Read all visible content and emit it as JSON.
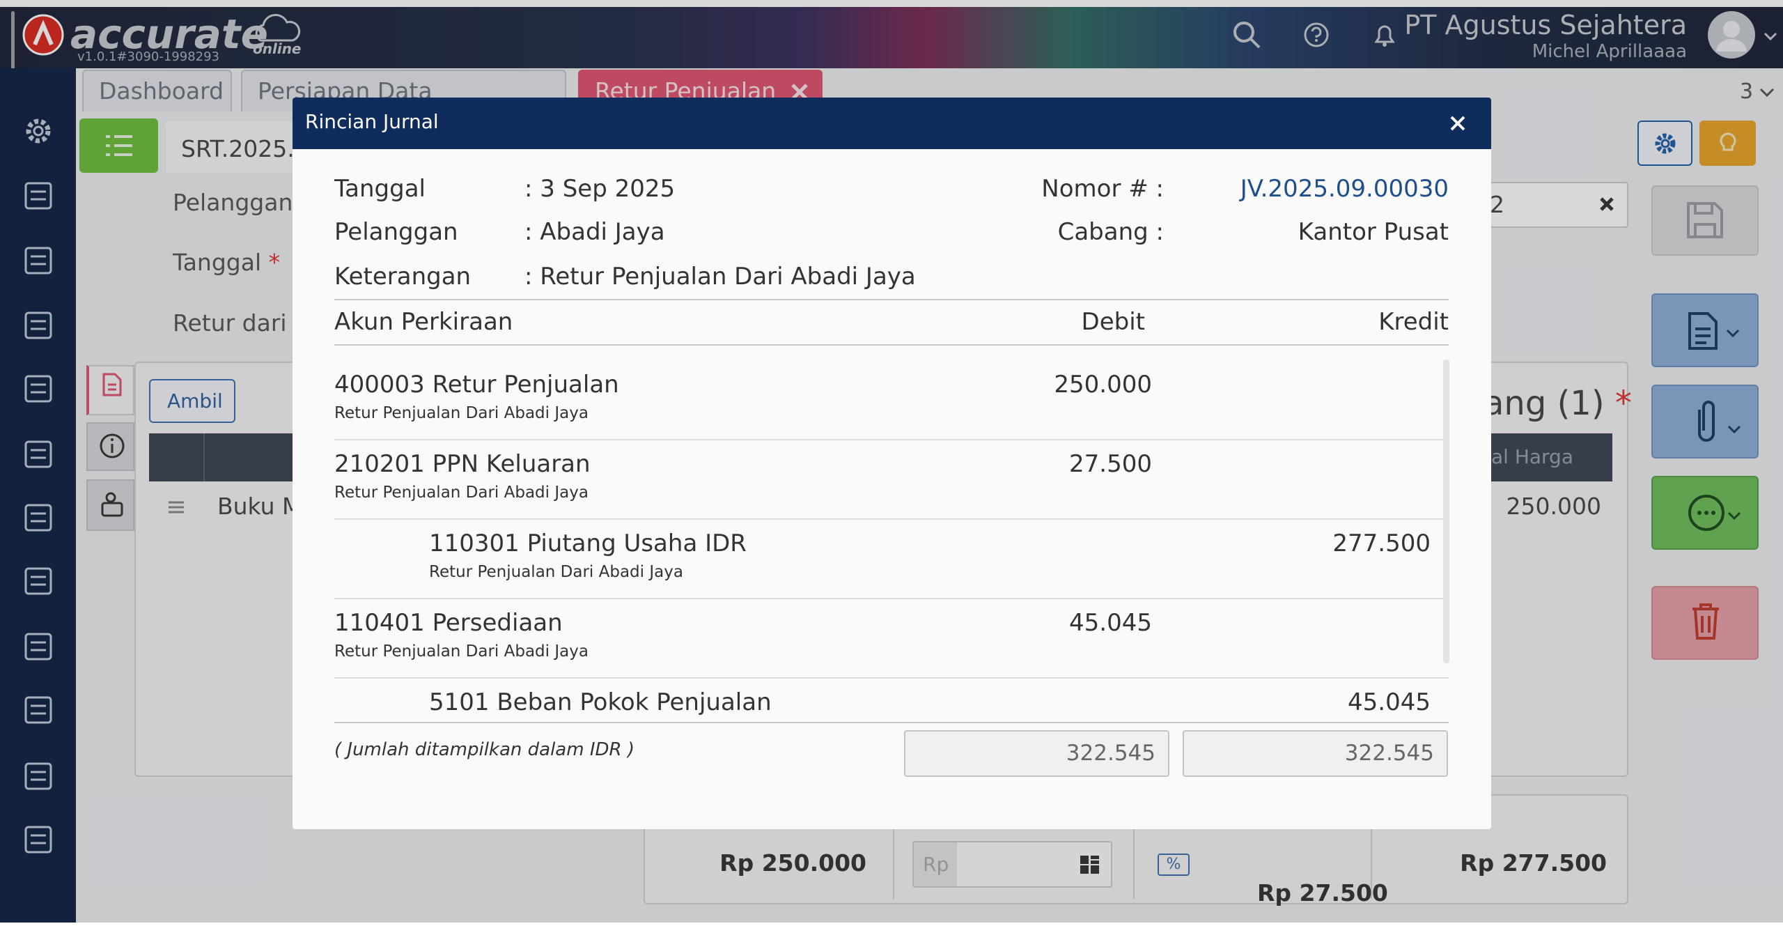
{
  "header": {
    "logo": "accurate",
    "edition": "online",
    "version": "v1.0.1#3090-1998293",
    "company": "PT Agustus Sejahtera",
    "user": "Michel Aprillaaaa"
  },
  "tabs": [
    "Dashboard",
    "Persiapan Data Perusahaan",
    "Retur Penjualan"
  ],
  "tab_count": "3",
  "form": {
    "number": "SRT.2025.",
    "required_mark": "*",
    "fields": [
      "Pelanggan",
      "Tanggal",
      "Retur dari"
    ],
    "customer_no": "2",
    "ambil": "Ambil",
    "item": "Buku M",
    "item_total": "250.000",
    "items_heading": "ang (1)",
    "col_total": "tal Harga",
    "subtotal": "Rp 250.000",
    "discount_prefix": "Rp",
    "percent": "%",
    "tax": "Rp 27.500",
    "total": "Rp 277.500"
  },
  "modal": {
    "title": "Rincian Jurnal",
    "info_left": [
      {
        "label": "Tanggal",
        "value": ": 3 Sep 2025"
      },
      {
        "label": "Pelanggan",
        "value": ": Abadi Jaya"
      },
      {
        "label": "Keterangan",
        "value": ": Retur Penjualan Dari Abadi Jaya"
      }
    ],
    "info_right": [
      {
        "label": "Nomor # :",
        "value": "JV.2025.09.00030"
      },
      {
        "label": "Cabang :",
        "value": "Kantor Pusat"
      }
    ],
    "columns": [
      "Akun Perkiraan",
      "Debit",
      "Kredit"
    ],
    "rows": [
      {
        "account": "400003 Retur Penjualan",
        "note": "Retur Penjualan Dari Abadi Jaya",
        "debit": "250.000"
      },
      {
        "account": "210201 PPN Keluaran",
        "note": "Retur Penjualan Dari Abadi Jaya",
        "debit": "27.500"
      },
      {
        "account": "110301 Piutang Usaha IDR",
        "note": "Retur Penjualan Dari Abadi Jaya",
        "credit": "277.500"
      },
      {
        "account": "110401 Persediaan",
        "note": "Retur Penjualan Dari Abadi Jaya",
        "debit": "45.045"
      },
      {
        "account": "5101 Beban Pokok Penjualan",
        "credit": "45.045"
      }
    ],
    "currency_note": "( Jumlah ditampilkan dalam IDR )",
    "total_debit": "322.545",
    "total_credit": "322.545"
  }
}
